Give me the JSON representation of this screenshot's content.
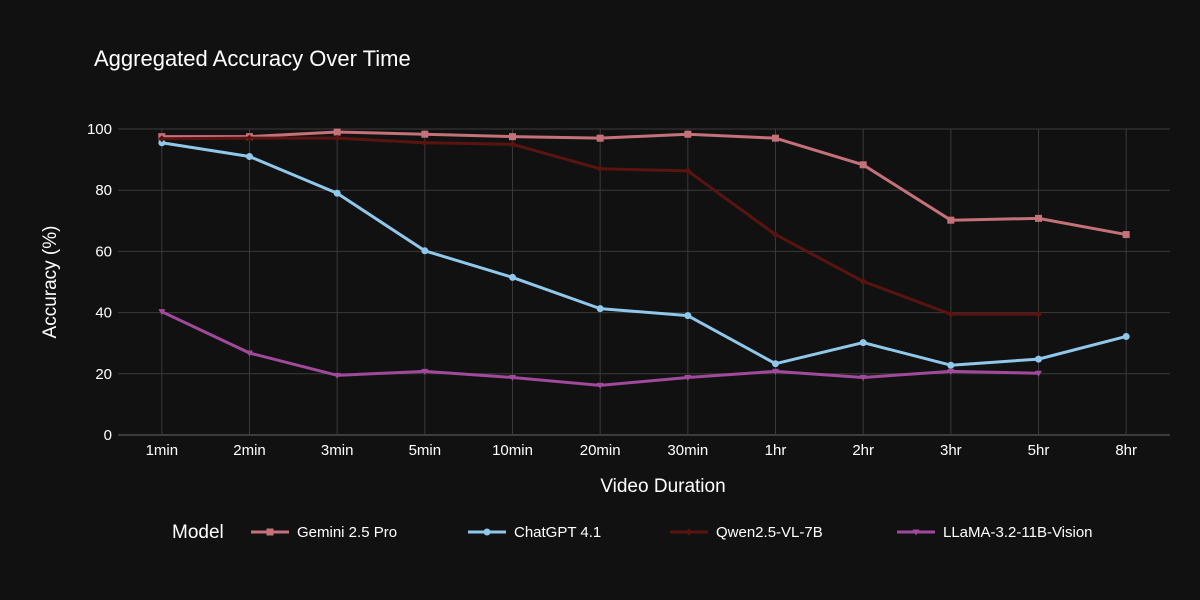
{
  "colors": {
    "background": "#111111",
    "gemini": "#c5717a",
    "chatgpt": "#8fc8ea",
    "qwen": "#5a1410",
    "llama": "#a14a9c"
  },
  "chart_data": {
    "type": "line",
    "title": "Aggregated Accuracy Over Time",
    "xlabel": "Video Duration",
    "ylabel": "Accuracy (%)",
    "ylim": [
      0,
      100
    ],
    "yticks": [
      0,
      20,
      40,
      60,
      80,
      100
    ],
    "grid": true,
    "legend": {
      "title": "Model",
      "placement": "bottom"
    },
    "categories": [
      "1min",
      "2min",
      "3min",
      "5min",
      "10min",
      "20min",
      "30min",
      "1hr",
      "2hr",
      "3hr",
      "5hr",
      "8hr"
    ],
    "series": [
      {
        "name": "Gemini 2.5 Pro",
        "color": "#c5717a",
        "marker": "square",
        "values": [
          97.5,
          97.5,
          99,
          98.3,
          97.5,
          97,
          98.3,
          97,
          88.3,
          70.2,
          70.8,
          65.5
        ]
      },
      {
        "name": "ChatGPT 4.1",
        "color": "#8fc8ea",
        "marker": "circle",
        "values": [
          95.5,
          91,
          79,
          60.2,
          51.5,
          41.3,
          39,
          23.3,
          30.2,
          22.8,
          24.8,
          32.2
        ]
      },
      {
        "name": "Qwen2.5-VL-7B",
        "color": "#5a1410",
        "marker": "diamond",
        "values": [
          96.8,
          97,
          97,
          95.5,
          95,
          87,
          86.3,
          65.5,
          50.2,
          39.5,
          39.5,
          null
        ]
      },
      {
        "name": "LLaMA-3.2-11B-Vision",
        "color": "#a14a9c",
        "marker": "triangle-down",
        "values": [
          40.3,
          26.8,
          19.5,
          20.8,
          18.8,
          16.2,
          18.8,
          20.8,
          18.8,
          20.8,
          20.2,
          null
        ]
      }
    ]
  }
}
